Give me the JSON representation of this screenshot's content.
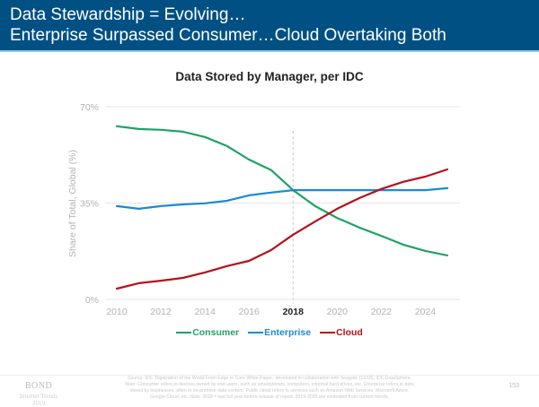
{
  "header": {
    "title_line1": "Data Stewardship = Evolving…",
    "title_line2": "Enterprise Surpassed Consumer…Cloud Overtaking Both"
  },
  "footer": {
    "brand": "BOND",
    "brand_sub1": "Internet Trends",
    "brand_sub2": "2019",
    "source_lines": [
      "Source: IDC 'Digitization of the World From Edge to Core White Paper,' developed in collaboration with Seagate (11/18), IDC DataSphere.",
      "Note: Consumer refers to devices owned by end users, such as smartphones, computers, external hard drives, etc. Enterprise refers to data",
      "stored by businesses, often in on-premise data centers. Public cloud refers to services such as Amazon Web Services, Microsoft Azure,",
      "Google Cloud, etc. Note: 2018 = last full year before release of report. 2019-2025 are estimated from current trends."
    ],
    "page_number": "153"
  },
  "colors": {
    "header_bg": "#005083",
    "consumer": "#1fa265",
    "enterprise": "#1b8ad3",
    "cloud": "#b5121b"
  },
  "chart_data": {
    "type": "line",
    "title": "Data Stored by Manager, per IDC",
    "xlabel": "",
    "ylabel": "Share of Total, Global (%)",
    "ylim": [
      0,
      70
    ],
    "xlim": [
      2010,
      2025
    ],
    "yticks": [
      0,
      35,
      70
    ],
    "ytick_labels": [
      "0%",
      "35%",
      "70%"
    ],
    "xticks": [
      2010,
      2012,
      2014,
      2016,
      2018,
      2020,
      2022,
      2024
    ],
    "xtick_labels": [
      "2010",
      "2012",
      "2014",
      "2016",
      "2018",
      "2020",
      "2022",
      "2024"
    ],
    "highlight_x": 2018,
    "grid": "horizontal",
    "legend_position": "bottom",
    "x": [
      2010,
      2011,
      2012,
      2013,
      2014,
      2015,
      2016,
      2017,
      2018,
      2019,
      2020,
      2021,
      2022,
      2023,
      2024,
      2025
    ],
    "series": [
      {
        "name": "Consumer",
        "color": "#1fa265",
        "values": [
          62.9,
          61.9,
          61.6,
          60.9,
          59.0,
          55.7,
          50.8,
          47.0,
          39.7,
          33.9,
          29.6,
          26.1,
          23.1,
          19.9,
          17.6,
          16.0
        ]
      },
      {
        "name": "Enterprise",
        "color": "#1b8ad3",
        "values": [
          33.9,
          32.9,
          33.9,
          34.5,
          34.9,
          35.8,
          37.8,
          38.8,
          39.7,
          39.7,
          39.7,
          39.7,
          39.7,
          39.7,
          39.7,
          40.4
        ]
      },
      {
        "name": "Cloud",
        "color": "#b5121b",
        "values": [
          3.9,
          5.9,
          6.8,
          7.8,
          9.8,
          12.1,
          14.0,
          17.9,
          23.5,
          28.3,
          32.9,
          36.8,
          40.1,
          42.7,
          44.6,
          47.2
        ]
      }
    ]
  }
}
